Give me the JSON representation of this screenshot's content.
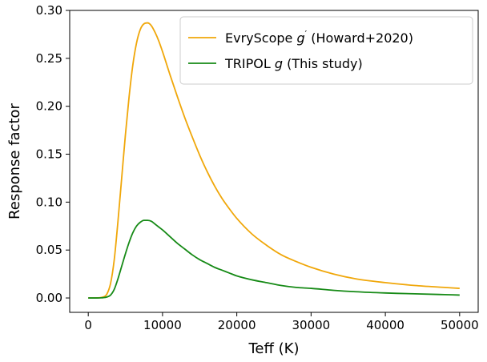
{
  "chart_data": {
    "type": "line",
    "xlabel": "Teff (K)",
    "ylabel": "Response factor",
    "xlim": [
      -2500,
      52500
    ],
    "ylim": [
      -0.015,
      0.3
    ],
    "xticks": [
      0,
      10000,
      20000,
      30000,
      40000,
      50000
    ],
    "xtick_labels": [
      "0",
      "10000",
      "20000",
      "30000",
      "40000",
      "50000"
    ],
    "yticks": [
      0.0,
      0.05,
      0.1,
      0.15,
      0.2,
      0.25,
      0.3
    ],
    "ytick_labels": [
      "0.00",
      "0.05",
      "0.10",
      "0.15",
      "0.20",
      "0.25",
      "0.30"
    ],
    "grid": false,
    "legend_position": "top-right",
    "series": [
      {
        "name_prefix": "EvryScope ",
        "name_italic": "g",
        "name_sup": "′",
        "name_suffix": " (Howard+2020)",
        "color": "#f0a70a",
        "x": [
          0,
          1000,
          2000,
          2500,
          3000,
          3500,
          4000,
          4500,
          5000,
          5500,
          6000,
          6500,
          7000,
          7500,
          8000,
          8500,
          9000,
          9500,
          10000,
          11000,
          12000,
          13000,
          14000,
          15000,
          16000,
          17000,
          18000,
          19000,
          20000,
          22000,
          24000,
          26000,
          28000,
          30000,
          33000,
          36000,
          40000,
          44000,
          48000,
          50000
        ],
        "y": [
          0.0,
          0.0,
          0.001,
          0.004,
          0.015,
          0.04,
          0.08,
          0.125,
          0.17,
          0.21,
          0.243,
          0.266,
          0.28,
          0.286,
          0.287,
          0.284,
          0.277,
          0.268,
          0.257,
          0.233,
          0.21,
          0.188,
          0.168,
          0.149,
          0.132,
          0.117,
          0.104,
          0.093,
          0.083,
          0.067,
          0.055,
          0.045,
          0.038,
          0.032,
          0.025,
          0.02,
          0.016,
          0.013,
          0.011,
          0.01
        ]
      },
      {
        "name_prefix": "TRIPOL ",
        "name_italic": "g",
        "name_sup": "",
        "name_suffix": " (This study)",
        "color": "#168a16",
        "x": [
          0,
          1000,
          2000,
          2500,
          3000,
          3500,
          4000,
          4500,
          5000,
          5500,
          6000,
          6500,
          7000,
          7500,
          8000,
          8500,
          9000,
          9500,
          10000,
          11000,
          12000,
          13000,
          14000,
          15000,
          16000,
          17000,
          18000,
          19000,
          20000,
          22000,
          24000,
          26000,
          28000,
          30000,
          33000,
          36000,
          40000,
          44000,
          48000,
          50000
        ],
        "y": [
          0.0,
          0.0,
          0.0003,
          0.001,
          0.003,
          0.009,
          0.02,
          0.033,
          0.046,
          0.058,
          0.068,
          0.075,
          0.079,
          0.081,
          0.081,
          0.08,
          0.077,
          0.074,
          0.071,
          0.064,
          0.057,
          0.051,
          0.045,
          0.04,
          0.036,
          0.032,
          0.029,
          0.026,
          0.023,
          0.019,
          0.016,
          0.013,
          0.011,
          0.01,
          0.008,
          0.0065,
          0.0052,
          0.0043,
          0.0035,
          0.003
        ]
      }
    ]
  }
}
